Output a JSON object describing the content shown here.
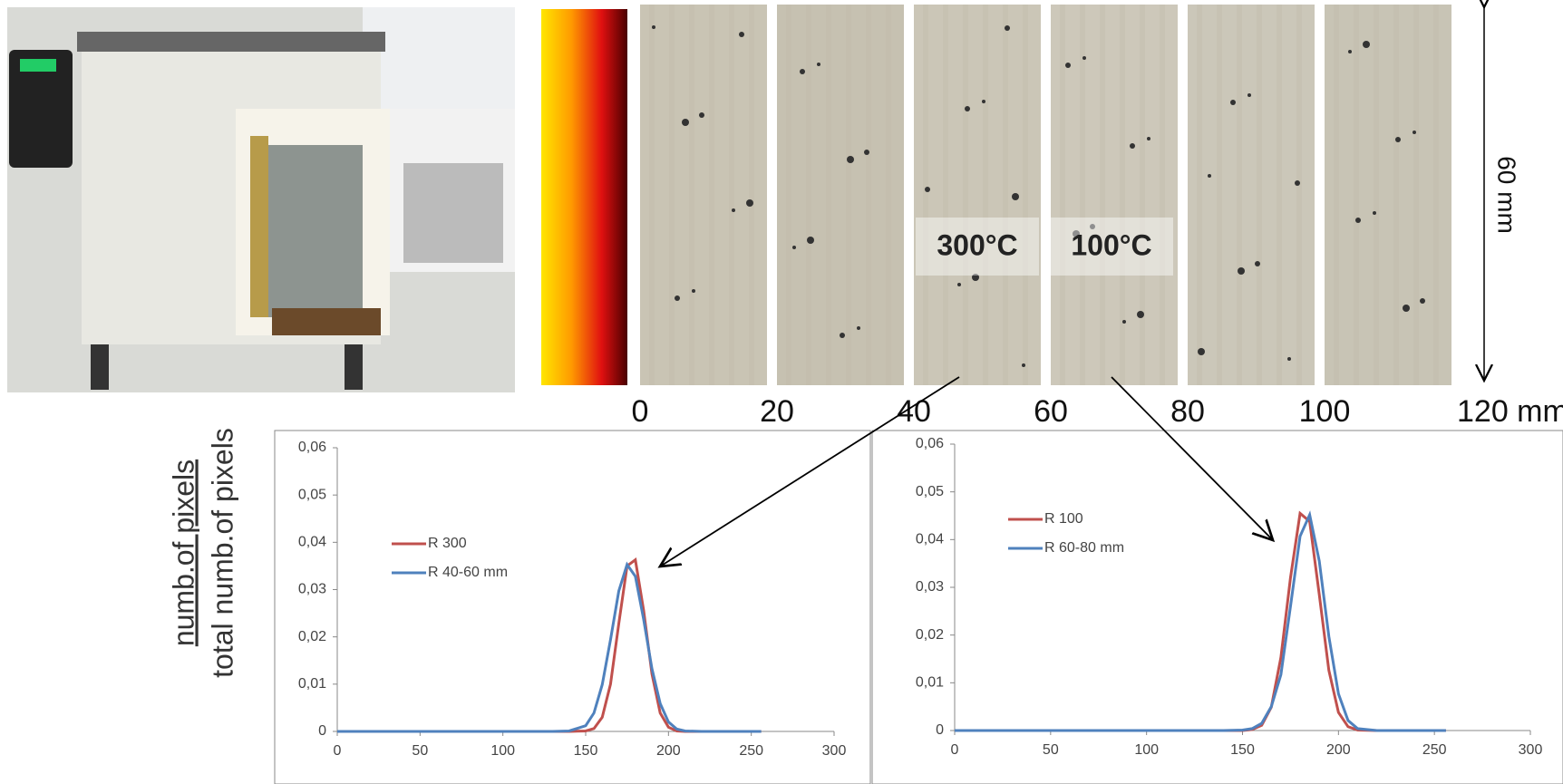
{
  "figure": {
    "scale_labels": [
      "0",
      "20",
      "40",
      "60",
      "80",
      "100",
      "120 mm"
    ],
    "height_label": "60 mm",
    "temperature_labels": [
      "300°C",
      "100°C"
    ],
    "y_label_numerator": "numb.of pixels",
    "y_label_denominator": "total numb.of pixels"
  },
  "chart_data": [
    {
      "type": "line",
      "x": [
        0,
        100,
        130,
        140,
        150,
        155,
        160,
        165,
        170,
        175,
        180,
        185,
        190,
        195,
        200,
        205,
        210,
        220,
        256
      ],
      "series": [
        {
          "name": "R 300",
          "color": "#c0504d",
          "values": [
            0,
            0,
            0,
            0,
            0.0001,
            0.0006,
            0.003,
            0.01,
            0.0228,
            0.035,
            0.0363,
            0.0256,
            0.0122,
            0.0039,
            0.0009,
            0.0001,
            0,
            0,
            0
          ]
        },
        {
          "name": "R 40-60 mm",
          "color": "#4f81bd",
          "values": [
            0,
            0,
            0,
            0.0001,
            0.0012,
            0.0039,
            0.0099,
            0.0194,
            0.0297,
            0.0353,
            0.0328,
            0.0237,
            0.0133,
            0.0059,
            0.002,
            0.0005,
            0.0001,
            0,
            0
          ]
        }
      ],
      "xlim": [
        0,
        300
      ],
      "xticks": [
        0,
        50,
        100,
        150,
        200,
        250,
        300
      ],
      "ylim": [
        0,
        0.06
      ],
      "yticks": [
        0,
        {
          "value": 0.01,
          "label": "0,01"
        },
        {
          "value": 0.02,
          "label": "0,02"
        },
        {
          "value": 0.03,
          "label": "0,03"
        },
        {
          "value": 0.04,
          "label": "0,04"
        },
        {
          "value": 0.05,
          "label": "0,05"
        },
        {
          "value": 0.06,
          "label": "0,06"
        }
      ],
      "legend": "left"
    },
    {
      "type": "line",
      "x": [
        0,
        100,
        130,
        140,
        150,
        155,
        160,
        165,
        170,
        175,
        180,
        185,
        190,
        195,
        200,
        205,
        210,
        220,
        256
      ],
      "series": [
        {
          "name": "R 100",
          "color": "#c0504d",
          "values": [
            0,
            0,
            0,
            0,
            0,
            0.0002,
            0.0011,
            0.0049,
            0.0153,
            0.032,
            0.0455,
            0.0438,
            0.0285,
            0.0126,
            0.0038,
            0.0008,
            0.0001,
            0,
            0
          ]
        },
        {
          "name": "R 60-80 mm",
          "color": "#4f81bd",
          "values": [
            0,
            0,
            0,
            0,
            0.0001,
            0.0004,
            0.0015,
            0.005,
            0.0117,
            0.026,
            0.0407,
            0.0452,
            0.0355,
            0.0197,
            0.0077,
            0.0021,
            0.0004,
            0,
            0
          ]
        }
      ],
      "xlim": [
        0,
        300
      ],
      "xticks": [
        0,
        50,
        100,
        150,
        200,
        250,
        300
      ],
      "ylim": [
        0,
        0.06
      ],
      "yticks": [
        0,
        {
          "value": 0.01,
          "label": "0,01"
        },
        {
          "value": 0.02,
          "label": "0,02"
        },
        {
          "value": 0.03,
          "label": "0,03"
        },
        {
          "value": 0.04,
          "label": "0,04"
        },
        {
          "value": 0.05,
          "label": "0,05"
        },
        {
          "value": 0.06,
          "label": "0,06"
        }
      ],
      "legend": "left"
    }
  ]
}
